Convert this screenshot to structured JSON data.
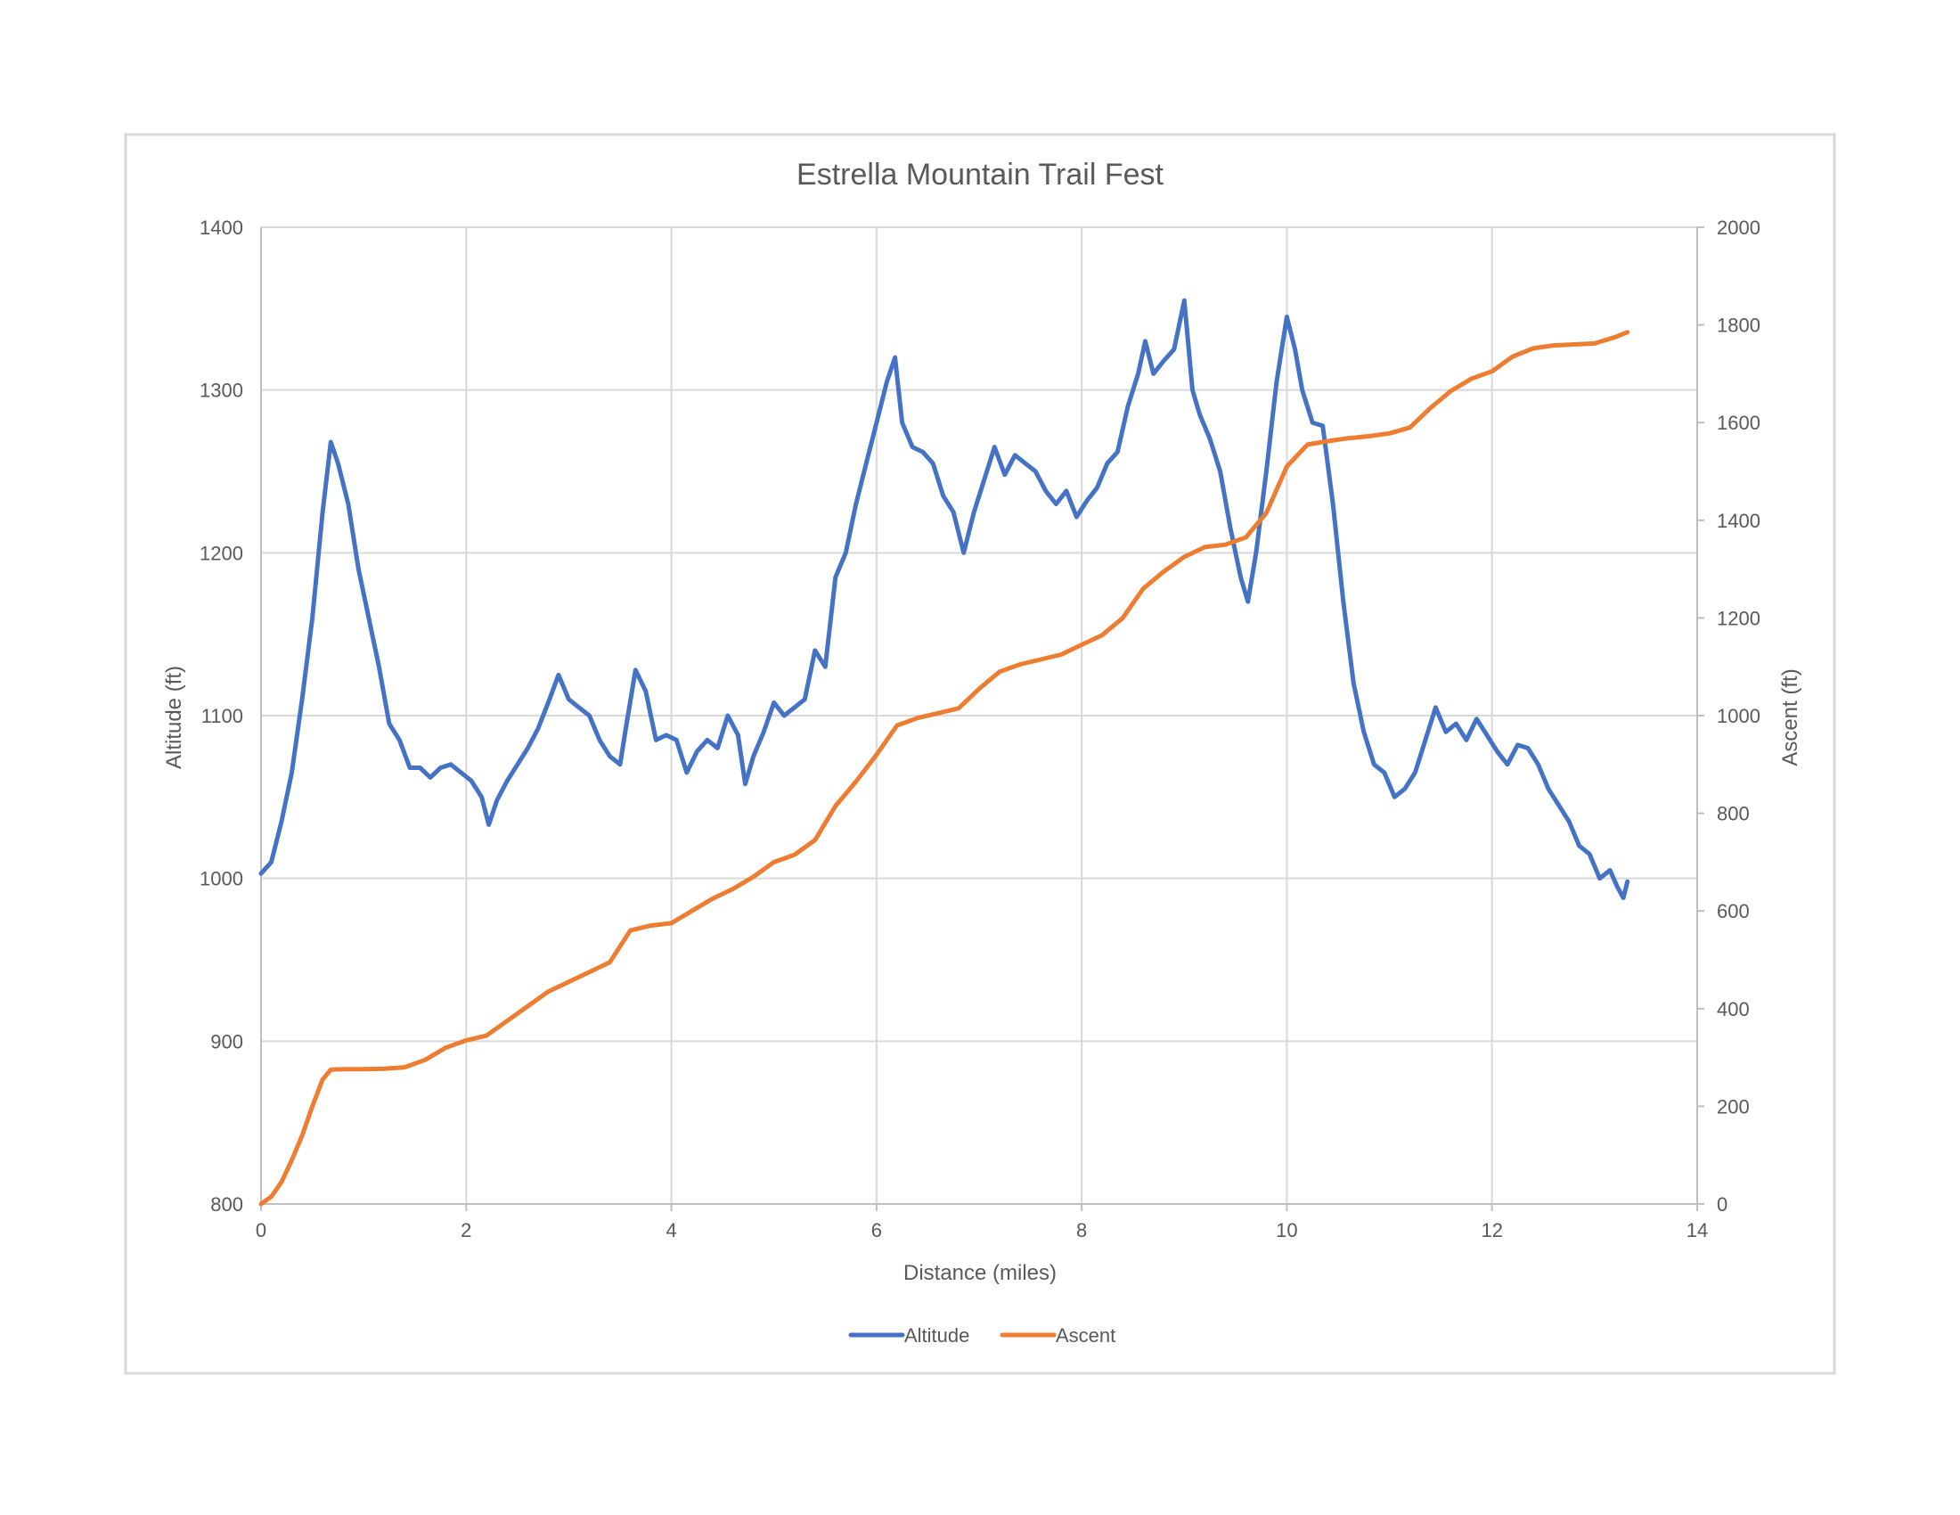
{
  "chart_data": {
    "type": "line",
    "title": "Estrella Mountain Trail Fest",
    "xlabel": "Distance (miles)",
    "ylabel": "Altitude (ft)",
    "y2label": "Ascent (ft)",
    "xlim": [
      0,
      14
    ],
    "ylim": [
      800,
      1400
    ],
    "y2lim": [
      0,
      2000
    ],
    "xticks": [
      0,
      2,
      4,
      6,
      8,
      10,
      12,
      14
    ],
    "yticks": [
      800,
      900,
      1000,
      1100,
      1200,
      1300,
      1400
    ],
    "y2ticks": [
      0,
      200,
      400,
      600,
      800,
      1000,
      1200,
      1400,
      1600,
      1800,
      2000
    ],
    "grid": true,
    "legend_position": "bottom",
    "series": [
      {
        "name": "Altitude",
        "axis": "left",
        "color": "#4472C4",
        "points": [
          [
            0.0,
            1003
          ],
          [
            0.1,
            1010
          ],
          [
            0.2,
            1035
          ],
          [
            0.3,
            1065
          ],
          [
            0.4,
            1110
          ],
          [
            0.5,
            1160
          ],
          [
            0.6,
            1225
          ],
          [
            0.68,
            1268
          ],
          [
            0.75,
            1255
          ],
          [
            0.85,
            1230
          ],
          [
            0.95,
            1190
          ],
          [
            1.05,
            1160
          ],
          [
            1.15,
            1130
          ],
          [
            1.25,
            1095
          ],
          [
            1.35,
            1085
          ],
          [
            1.45,
            1068
          ],
          [
            1.55,
            1068
          ],
          [
            1.65,
            1062
          ],
          [
            1.75,
            1068
          ],
          [
            1.85,
            1070
          ],
          [
            1.95,
            1065
          ],
          [
            2.05,
            1060
          ],
          [
            2.15,
            1050
          ],
          [
            2.22,
            1033
          ],
          [
            2.3,
            1048
          ],
          [
            2.4,
            1060
          ],
          [
            2.5,
            1070
          ],
          [
            2.6,
            1080
          ],
          [
            2.7,
            1092
          ],
          [
            2.8,
            1108
          ],
          [
            2.9,
            1125
          ],
          [
            3.0,
            1110
          ],
          [
            3.1,
            1105
          ],
          [
            3.2,
            1100
          ],
          [
            3.3,
            1085
          ],
          [
            3.4,
            1075
          ],
          [
            3.5,
            1070
          ],
          [
            3.55,
            1090
          ],
          [
            3.65,
            1128
          ],
          [
            3.75,
            1115
          ],
          [
            3.85,
            1085
          ],
          [
            3.95,
            1088
          ],
          [
            4.05,
            1085
          ],
          [
            4.15,
            1065
          ],
          [
            4.25,
            1078
          ],
          [
            4.35,
            1085
          ],
          [
            4.45,
            1080
          ],
          [
            4.55,
            1100
          ],
          [
            4.65,
            1088
          ],
          [
            4.72,
            1058
          ],
          [
            4.8,
            1075
          ],
          [
            4.9,
            1090
          ],
          [
            5.0,
            1108
          ],
          [
            5.1,
            1100
          ],
          [
            5.2,
            1105
          ],
          [
            5.3,
            1110
          ],
          [
            5.4,
            1140
          ],
          [
            5.5,
            1130
          ],
          [
            5.6,
            1185
          ],
          [
            5.7,
            1200
          ],
          [
            5.8,
            1230
          ],
          [
            5.9,
            1255
          ],
          [
            6.0,
            1280
          ],
          [
            6.1,
            1305
          ],
          [
            6.18,
            1320
          ],
          [
            6.25,
            1280
          ],
          [
            6.35,
            1265
          ],
          [
            6.45,
            1262
          ],
          [
            6.55,
            1255
          ],
          [
            6.65,
            1235
          ],
          [
            6.75,
            1225
          ],
          [
            6.85,
            1200
          ],
          [
            6.95,
            1225
          ],
          [
            7.05,
            1245
          ],
          [
            7.15,
            1265
          ],
          [
            7.25,
            1248
          ],
          [
            7.35,
            1260
          ],
          [
            7.45,
            1255
          ],
          [
            7.55,
            1250
          ],
          [
            7.65,
            1238
          ],
          [
            7.75,
            1230
          ],
          [
            7.85,
            1238
          ],
          [
            7.95,
            1222
          ],
          [
            8.05,
            1232
          ],
          [
            8.15,
            1240
          ],
          [
            8.25,
            1255
          ],
          [
            8.35,
            1262
          ],
          [
            8.45,
            1290
          ],
          [
            8.55,
            1310
          ],
          [
            8.62,
            1330
          ],
          [
            8.7,
            1310
          ],
          [
            8.8,
            1318
          ],
          [
            8.9,
            1325
          ],
          [
            9.0,
            1355
          ],
          [
            9.08,
            1300
          ],
          [
            9.15,
            1285
          ],
          [
            9.25,
            1270
          ],
          [
            9.35,
            1250
          ],
          [
            9.45,
            1215
          ],
          [
            9.55,
            1185
          ],
          [
            9.62,
            1170
          ],
          [
            9.7,
            1200
          ],
          [
            9.8,
            1250
          ],
          [
            9.9,
            1305
          ],
          [
            10.0,
            1345
          ],
          [
            10.08,
            1325
          ],
          [
            10.15,
            1300
          ],
          [
            10.25,
            1280
          ],
          [
            10.35,
            1278
          ],
          [
            10.45,
            1230
          ],
          [
            10.55,
            1170
          ],
          [
            10.65,
            1120
          ],
          [
            10.75,
            1090
          ],
          [
            10.85,
            1070
          ],
          [
            10.95,
            1065
          ],
          [
            11.05,
            1050
          ],
          [
            11.15,
            1055
          ],
          [
            11.25,
            1065
          ],
          [
            11.35,
            1085
          ],
          [
            11.45,
            1105
          ],
          [
            11.55,
            1090
          ],
          [
            11.65,
            1095
          ],
          [
            11.75,
            1085
          ],
          [
            11.85,
            1098
          ],
          [
            11.95,
            1088
          ],
          [
            12.05,
            1078
          ],
          [
            12.15,
            1070
          ],
          [
            12.25,
            1082
          ],
          [
            12.35,
            1080
          ],
          [
            12.45,
            1070
          ],
          [
            12.55,
            1055
          ],
          [
            12.65,
            1045
          ],
          [
            12.75,
            1035
          ],
          [
            12.85,
            1020
          ],
          [
            12.95,
            1015
          ],
          [
            13.05,
            1000
          ],
          [
            13.15,
            1005
          ],
          [
            13.22,
            995
          ],
          [
            13.28,
            988
          ],
          [
            13.32,
            998
          ]
        ]
      },
      {
        "name": "Ascent",
        "axis": "right",
        "color": "#ED7D31",
        "points": [
          [
            0.0,
            0
          ],
          [
            0.1,
            15
          ],
          [
            0.2,
            45
          ],
          [
            0.3,
            90
          ],
          [
            0.4,
            140
          ],
          [
            0.5,
            200
          ],
          [
            0.6,
            255
          ],
          [
            0.68,
            275
          ],
          [
            0.8,
            276
          ],
          [
            1.0,
            276
          ],
          [
            1.2,
            277
          ],
          [
            1.4,
            280
          ],
          [
            1.6,
            295
          ],
          [
            1.8,
            320
          ],
          [
            2.0,
            335
          ],
          [
            2.2,
            345
          ],
          [
            2.4,
            375
          ],
          [
            2.6,
            405
          ],
          [
            2.8,
            435
          ],
          [
            3.0,
            455
          ],
          [
            3.2,
            475
          ],
          [
            3.4,
            495
          ],
          [
            3.6,
            560
          ],
          [
            3.8,
            570
          ],
          [
            4.0,
            575
          ],
          [
            4.2,
            600
          ],
          [
            4.4,
            625
          ],
          [
            4.6,
            645
          ],
          [
            4.8,
            670
          ],
          [
            5.0,
            700
          ],
          [
            5.2,
            715
          ],
          [
            5.4,
            745
          ],
          [
            5.6,
            815
          ],
          [
            5.8,
            865
          ],
          [
            6.0,
            920
          ],
          [
            6.2,
            980
          ],
          [
            6.4,
            995
          ],
          [
            6.6,
            1005
          ],
          [
            6.8,
            1015
          ],
          [
            7.0,
            1055
          ],
          [
            7.2,
            1090
          ],
          [
            7.4,
            1105
          ],
          [
            7.6,
            1115
          ],
          [
            7.8,
            1125
          ],
          [
            8.0,
            1145
          ],
          [
            8.2,
            1165
          ],
          [
            8.4,
            1200
          ],
          [
            8.6,
            1260
          ],
          [
            8.8,
            1295
          ],
          [
            9.0,
            1325
          ],
          [
            9.2,
            1345
          ],
          [
            9.4,
            1350
          ],
          [
            9.6,
            1365
          ],
          [
            9.8,
            1415
          ],
          [
            10.0,
            1510
          ],
          [
            10.2,
            1555
          ],
          [
            10.4,
            1562
          ],
          [
            10.6,
            1568
          ],
          [
            10.8,
            1572
          ],
          [
            11.0,
            1578
          ],
          [
            11.2,
            1590
          ],
          [
            11.4,
            1630
          ],
          [
            11.6,
            1665
          ],
          [
            11.8,
            1690
          ],
          [
            12.0,
            1705
          ],
          [
            12.2,
            1735
          ],
          [
            12.4,
            1752
          ],
          [
            12.6,
            1758
          ],
          [
            12.8,
            1760
          ],
          [
            13.0,
            1762
          ],
          [
            13.2,
            1775
          ],
          [
            13.32,
            1785
          ]
        ]
      }
    ]
  }
}
